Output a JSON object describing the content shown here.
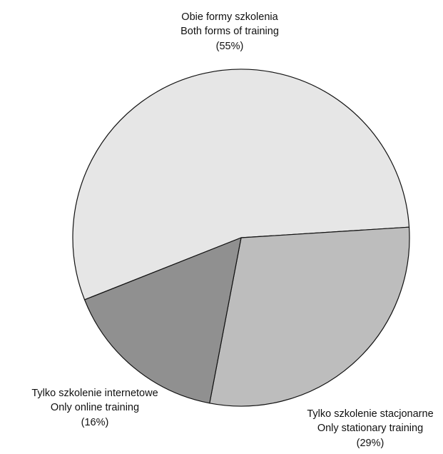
{
  "chart_data": {
    "type": "pie",
    "title": "",
    "slices": [
      {
        "label_pl": "Obie formy szkolenia",
        "label_en": "Both forms of training",
        "percent_label": "(55%)",
        "value": 55,
        "color": "#e6e6e6"
      },
      {
        "label_pl": "Tylko szkolenie stacjonarne",
        "label_en": "Only stationary training",
        "percent_label": "(29%)",
        "value": 29,
        "color": "#bdbdbd"
      },
      {
        "label_pl": "Tylko szkolenie internetowe",
        "label_en": "Only online training",
        "percent_label": "(16%)",
        "value": 16,
        "color": "#909090"
      }
    ],
    "edge_color": "#111111"
  }
}
